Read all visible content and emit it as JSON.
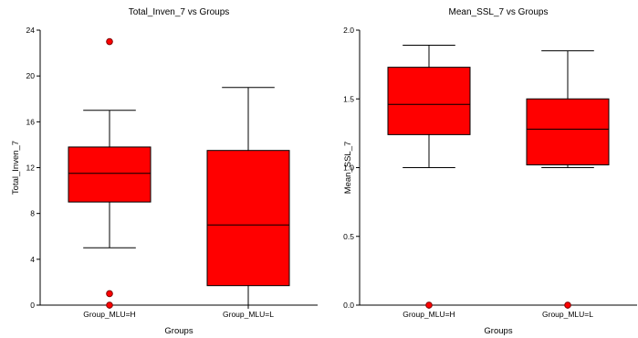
{
  "chart_data": [
    {
      "type": "box",
      "title": "Total_Inven_7 vs Groups",
      "xlabel": "Groups",
      "ylabel": "Total_Inven_7",
      "ylim": [
        0,
        24
      ],
      "yticks": [
        "0",
        "4",
        "8",
        "12",
        "16",
        "20",
        "24"
      ],
      "categories": [
        "Group_MLU=H",
        "Group_MLU=L"
      ],
      "box_color": "#ff0000",
      "boxes": [
        {
          "category": "Group_MLU=H",
          "whisker_low": 5,
          "q1": 9,
          "median": 11.5,
          "q3": 13.8,
          "whisker_high": 17,
          "outliers": [
            0,
            1,
            23
          ]
        },
        {
          "category": "Group_MLU=L",
          "whisker_low": 0,
          "q1": 1.7,
          "median": 7,
          "q3": 13.5,
          "whisker_high": 19,
          "outliers": []
        }
      ]
    },
    {
      "type": "box",
      "title": "Mean_SSL_7 vs Groups",
      "xlabel": "Groups",
      "ylabel": "Mean_SSL_7",
      "ylim": [
        0,
        2
      ],
      "yticks": [
        "0.0",
        "0.5",
        "1.0",
        "1.5",
        "2.0"
      ],
      "categories": [
        "Group_MLU=H",
        "Group_MLU=L"
      ],
      "box_color": "#ff0000",
      "boxes": [
        {
          "category": "Group_MLU=H",
          "whisker_low": 1.0,
          "q1": 1.24,
          "median": 1.46,
          "q3": 1.73,
          "whisker_high": 1.89,
          "outliers": [
            0
          ]
        },
        {
          "category": "Group_MLU=L",
          "whisker_low": 1.0,
          "q1": 1.02,
          "median": 1.28,
          "q3": 1.5,
          "whisker_high": 1.85,
          "outliers": [
            0
          ]
        }
      ]
    }
  ]
}
